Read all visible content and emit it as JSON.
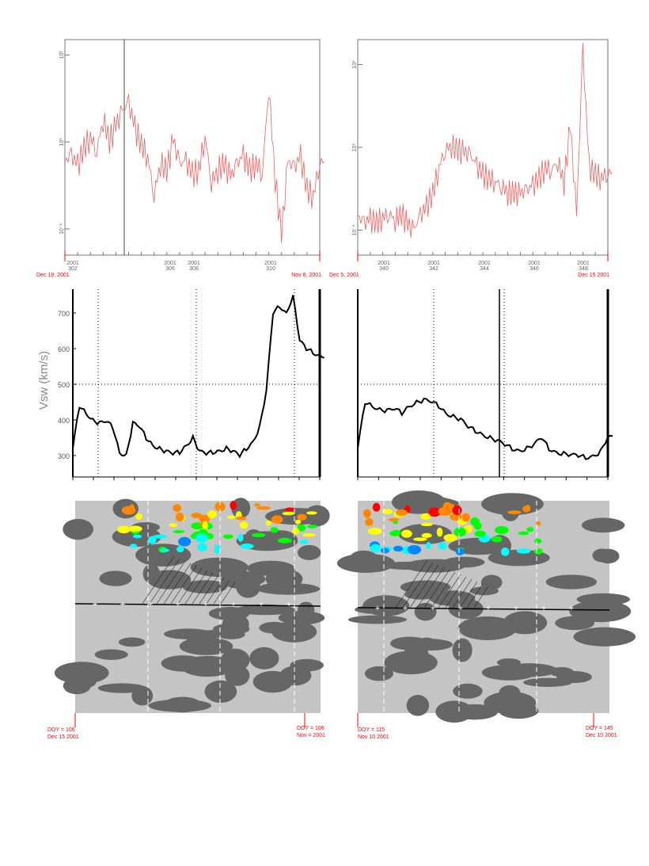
{
  "chart_data": [
    {
      "type": "line",
      "panel": "top-left",
      "scale": "log",
      "yticks": [
        "10⁻¹",
        "10⁰",
        "10¹"
      ],
      "ylim": [
        0.05,
        15
      ],
      "xticks": [
        [
          "2001",
          "302"
        ],
        [
          "2001",
          "306"
        ],
        [
          "2001",
          "308"
        ],
        [
          "2001",
          "310"
        ]
      ],
      "start_label": "Dec 19, 2001",
      "end_label": "Nov 8, 2001",
      "color": "#f06060",
      "values": [
        0.6,
        0.7,
        0.55,
        0.9,
        1.2,
        0.8,
        1.9,
        1.1,
        1.6,
        2.2,
        2.8,
        1.5,
        1.0,
        0.7,
        0.25,
        0.6,
        0.5,
        1.1,
        0.55,
        0.6,
        0.45,
        0.5,
        1.2,
        0.35,
        0.5,
        0.6,
        0.4,
        0.55,
        0.7,
        0.5,
        0.6,
        0.45,
        4.5,
        0.4,
        0.09,
        0.6,
        0.5,
        0.7,
        0.3,
        0.25,
        0.6
      ]
    },
    {
      "type": "line",
      "panel": "top-right",
      "scale": "log",
      "yticks": [
        "10⁻¹",
        "10⁰",
        "10¹"
      ],
      "ylim": [
        0.05,
        20
      ],
      "xticks": [
        [
          "2001",
          "340"
        ],
        [
          "2001",
          "342"
        ],
        [
          "2001",
          "344"
        ],
        [
          "2001",
          "346"
        ],
        [
          "2001",
          "348"
        ]
      ],
      "start_label": "Dec 5, 2001",
      "end_label": "Dec 15 2001",
      "color": "#f06060",
      "values": [
        0.15,
        0.12,
        0.14,
        0.13,
        0.15,
        0.16,
        0.14,
        0.17,
        0.12,
        0.1,
        0.15,
        0.2,
        0.3,
        0.6,
        0.95,
        1.1,
        1.0,
        0.9,
        0.8,
        0.6,
        0.5,
        0.45,
        0.4,
        0.35,
        0.3,
        0.3,
        0.28,
        0.3,
        0.35,
        0.45,
        0.6,
        0.55,
        0.7,
        0.4,
        2.0,
        0.15,
        15,
        0.6,
        0.5,
        0.45,
        0.5
      ]
    },
    {
      "type": "line",
      "panel": "middle-left",
      "ylabel": "Vsw (km/s)",
      "yticks": [
        "300",
        "400",
        "500",
        "600",
        "700"
      ],
      "ylim": [
        250,
        750
      ],
      "values": [
        320,
        440,
        420,
        400,
        390,
        395,
        380,
        310,
        300,
        390,
        380,
        350,
        330,
        320,
        310,
        305,
        310,
        330,
        350,
        310,
        305,
        310,
        315,
        320,
        310,
        300,
        320,
        340,
        380,
        480,
        700,
        720,
        700,
        750,
        620,
        600,
        590,
        580
      ]
    },
    {
      "type": "line",
      "panel": "middle-right",
      "yticks": [],
      "ylim": [
        250,
        750
      ],
      "values": [
        320,
        450,
        440,
        430,
        425,
        430,
        420,
        440,
        450,
        455,
        450,
        440,
        420,
        410,
        400,
        380,
        370,
        360,
        350,
        340,
        330,
        320,
        315,
        320,
        330,
        350,
        320,
        310,
        305,
        300,
        300,
        295,
        300,
        310,
        350
      ]
    },
    {
      "type": "heatmap",
      "panel": "bottom-left",
      "start_label": [
        "DOY = 106",
        "Dec 15 2001"
      ],
      "end_label": [
        "DOY = 106",
        "Nov = 2001"
      ]
    },
    {
      "type": "heatmap",
      "panel": "bottom-right",
      "start_label": [
        "DOY = 115",
        "Nov 10 2001"
      ],
      "end_label": [
        "DOY = 145",
        "Dec 10 2001"
      ]
    }
  ]
}
